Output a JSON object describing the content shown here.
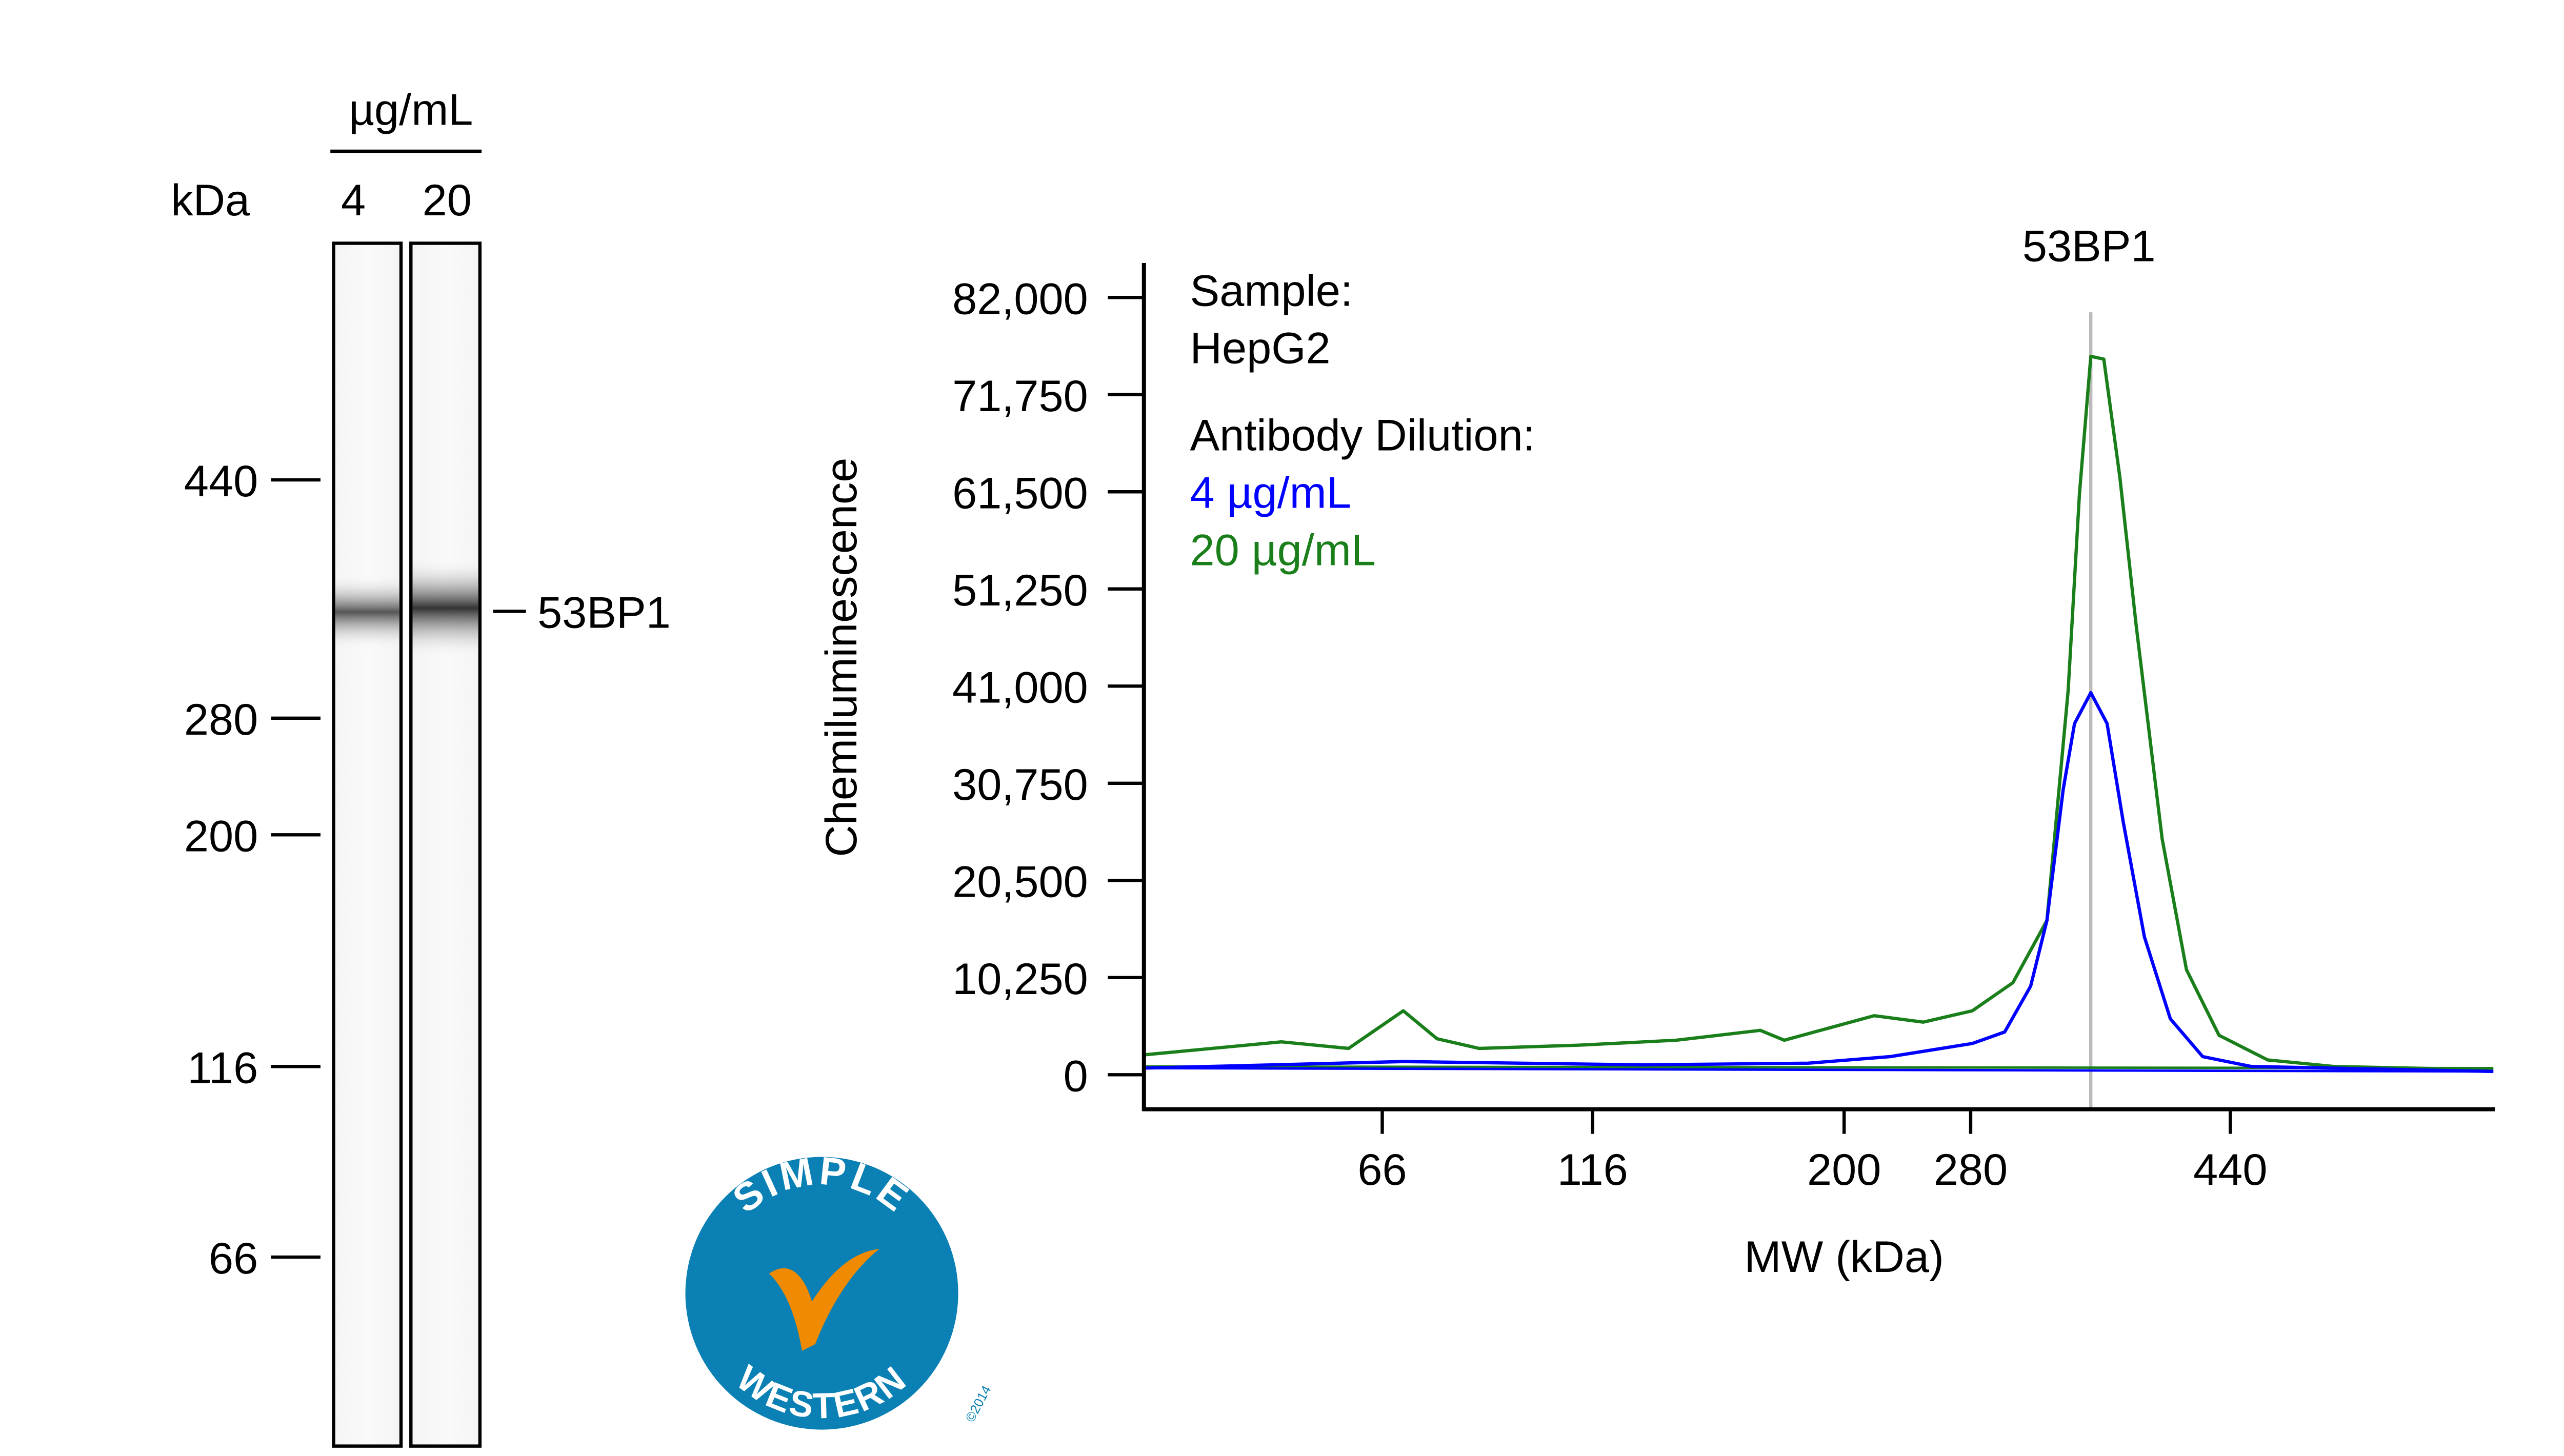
{
  "gel": {
    "units_label": "µg/mL",
    "kda_label": "kDa",
    "lanes": [
      {
        "label": "4",
        "band_intensity": 0.55
      },
      {
        "label": "20",
        "band_intensity": 0.8
      }
    ],
    "markers": [
      "440",
      "280",
      "200",
      "116",
      "66"
    ],
    "band_label": "53BP1"
  },
  "logo": {
    "top": "SIMPLE",
    "bottom": "WESTERN",
    "copyright": "©2014",
    "colors": {
      "circle": "#0a80b4",
      "check": "#f08a00"
    }
  },
  "chart_data": {
    "type": "line",
    "title": "53BP1",
    "xlabel": "MW (kDa)",
    "ylabel": "Chemiluminescence",
    "x_ticks": [
      66,
      116,
      200,
      280,
      440
    ],
    "x_tick_labels": [
      "66",
      "116",
      "200",
      "280",
      "440"
    ],
    "xlim": [
      9,
      602
    ],
    "y_ticks": [
      0,
      10250,
      20500,
      30750,
      41000,
      51250,
      61500,
      71750,
      82000
    ],
    "y_tick_labels": [
      "0",
      "10,250",
      "20,500",
      "30,750",
      "41,000",
      "51,250",
      "61,500",
      "71,750",
      "82,000"
    ],
    "ylim": [
      0,
      82000
    ],
    "grid": false,
    "marker_line_kda": 354,
    "legend": {
      "placement": "top-left",
      "sample_label": "Sample:",
      "sample_value": "HepG2",
      "dilution_label": "Antibody Dilution:"
    },
    "series": [
      {
        "name": "4 µg/mL",
        "color": "#0000ff",
        "x": [
          9,
          71,
          133,
          188,
          229,
          281,
          301,
          317,
          327,
          337,
          344,
          354,
          364,
          374,
          387,
          403,
          423,
          453,
          602
        ],
        "y": [
          700,
          1390,
          1040,
          1210,
          1900,
          3290,
          4500,
          9350,
          16280,
          30100,
          37050,
          40300,
          37050,
          26700,
          14540,
          5890,
          1900,
          870,
          350
        ]
      },
      {
        "name": "20 µg/mL",
        "color": "#1a7f1a",
        "x": [
          9,
          42,
          58,
          71,
          79,
          89,
          113,
          144,
          172,
          180,
          219,
          250,
          281,
          306,
          327,
          340,
          347,
          354,
          362,
          372,
          382,
          398,
          413,
          433,
          463,
          504,
          602
        ],
        "y": [
          2080,
          3460,
          2770,
          6750,
          3800,
          2770,
          3120,
          3640,
          4680,
          3640,
          6230,
          5540,
          6750,
          9700,
          16280,
          40500,
          61300,
          75800,
          75500,
          63000,
          47400,
          24900,
          11080,
          4160,
          1560,
          870,
          520
        ]
      }
    ]
  }
}
